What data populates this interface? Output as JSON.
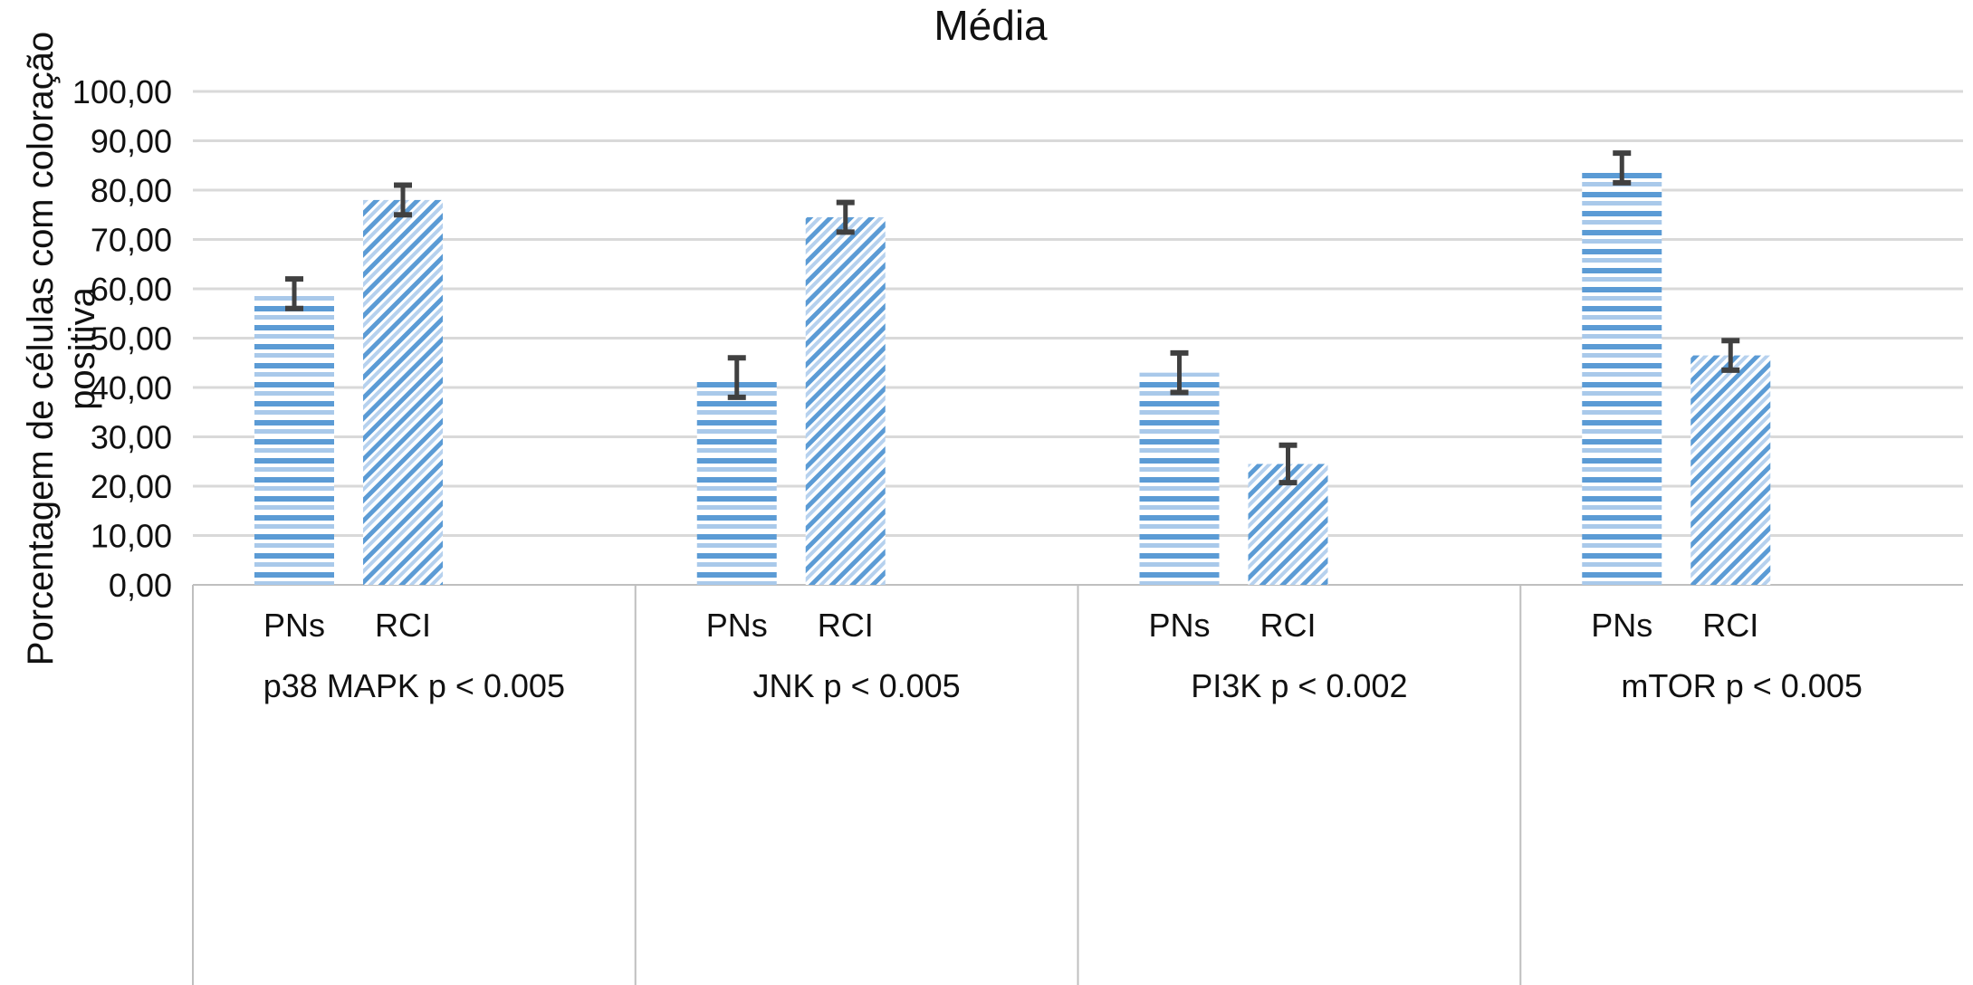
{
  "chart_data": {
    "type": "bar",
    "title": "Média",
    "ylabel_lines": [
      "Porcentagem de células com coloração",
      "positiva"
    ],
    "xlabel": "",
    "ylim": [
      0,
      100
    ],
    "ytick_step": 10,
    "ytick_labels": [
      "0,00",
      "10,00",
      "20,00",
      "30,00",
      "40,00",
      "50,00",
      "60,00",
      "70,00",
      "80,00",
      "90,00",
      "100,00"
    ],
    "grid": true,
    "legend": "none",
    "groups": [
      {
        "label": "p38 MAPK p < 0.005",
        "bars": [
          {
            "name": "PNs",
            "value": 59,
            "error": 3,
            "pattern": "horizontal"
          },
          {
            "name": "RCI",
            "value": 78,
            "error": 3,
            "pattern": "diagonal"
          }
        ]
      },
      {
        "label": "JNK p < 0.005",
        "bars": [
          {
            "name": "PNs",
            "value": 42,
            "error": 4,
            "pattern": "horizontal"
          },
          {
            "name": "RCI",
            "value": 74.5,
            "error": 3,
            "pattern": "diagonal"
          }
        ]
      },
      {
        "label": "PI3K p < 0.002",
        "bars": [
          {
            "name": "PNs",
            "value": 43,
            "error": 4,
            "pattern": "horizontal"
          },
          {
            "name": "RCI",
            "value": 24.5,
            "error": 3.8,
            "pattern": "diagonal"
          }
        ]
      },
      {
        "label": "mTOR p < 0.005",
        "bars": [
          {
            "name": "PNs",
            "value": 84.5,
            "error": 3,
            "pattern": "horizontal"
          },
          {
            "name": "RCI",
            "value": 46.5,
            "error": 3,
            "pattern": "diagonal"
          }
        ]
      }
    ],
    "colors": {
      "bar": "#5b9bd5",
      "bar_light": "#a9c9ea",
      "error_bar": "#404040",
      "grid": "#d9d9d9",
      "axis": "#bfbfbf"
    }
  }
}
